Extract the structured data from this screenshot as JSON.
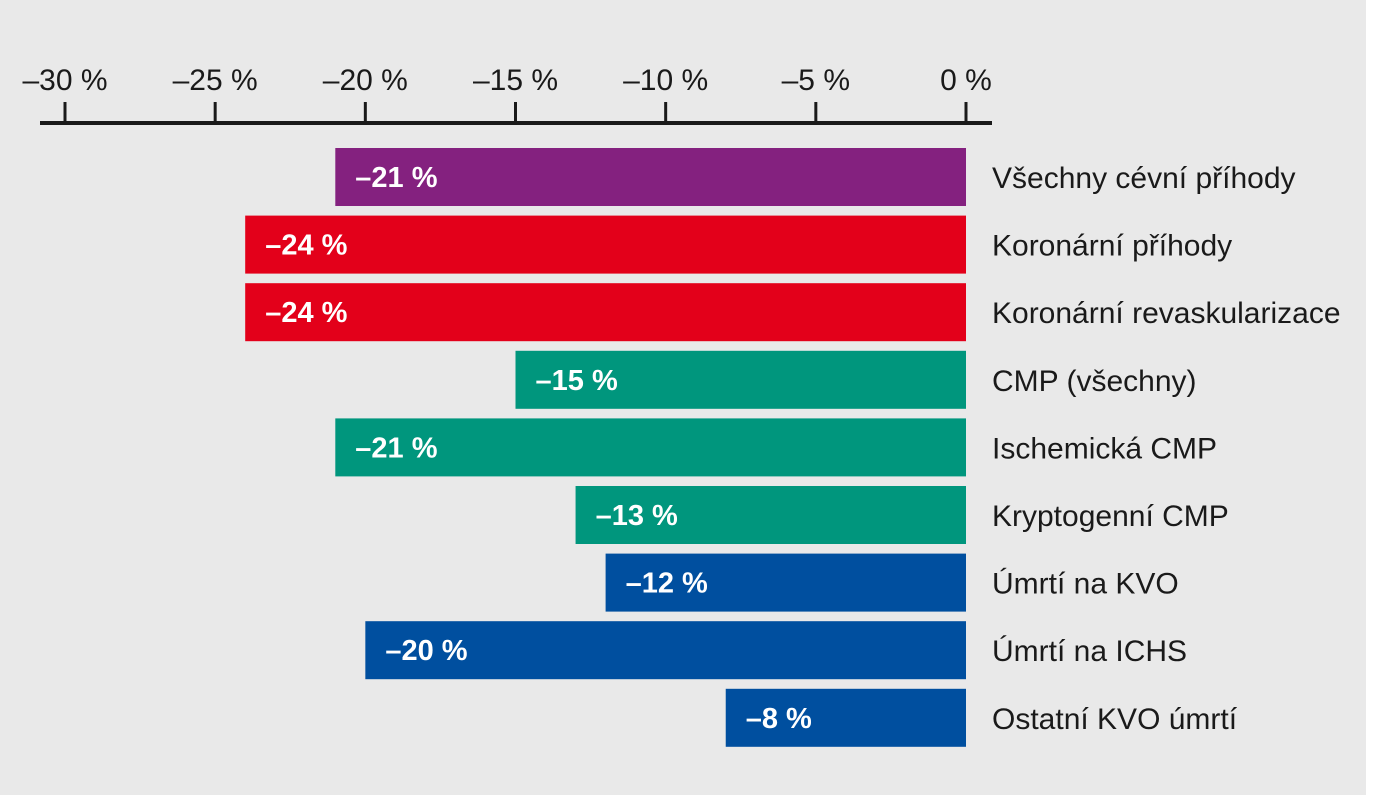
{
  "chart_data": {
    "type": "bar",
    "orientation": "horizontal",
    "title": "",
    "xlabel": "",
    "ylabel": "",
    "xlim": [
      -30,
      0
    ],
    "x_ticks": [
      -30,
      -25,
      -20,
      -15,
      -10,
      -5,
      0
    ],
    "x_tick_labels": [
      "–30 %",
      "–25 %",
      "–20 %",
      "–15 %",
      "–10 %",
      "–5 %",
      "0 %"
    ],
    "axis_position": "top",
    "grid": false,
    "legend": "none",
    "categories": [
      "Všechny cévní příhody",
      "Koronární příhody",
      "Koronární revaskularizace",
      "CMP (všechny)",
      "Ischemická CMP",
      "Kryptogenní CMP",
      "Úmrtí na KVO",
      "Úmrtí na ICHS",
      "Ostatní KVO úmrtí"
    ],
    "values": [
      -21,
      -24,
      -24,
      -15,
      -21,
      -13,
      -12,
      -20,
      -8
    ],
    "value_labels": [
      "–21 %",
      "–24 %",
      "–24 %",
      "–15 %",
      "–21 %",
      "–13 %",
      "–12 %",
      "–20 %",
      "–8 %"
    ],
    "colors": [
      "#84217f",
      "#e3001a",
      "#e3001a",
      "#00967d",
      "#00967d",
      "#00967d",
      "#004f9f",
      "#004f9f",
      "#004f9f"
    ]
  }
}
